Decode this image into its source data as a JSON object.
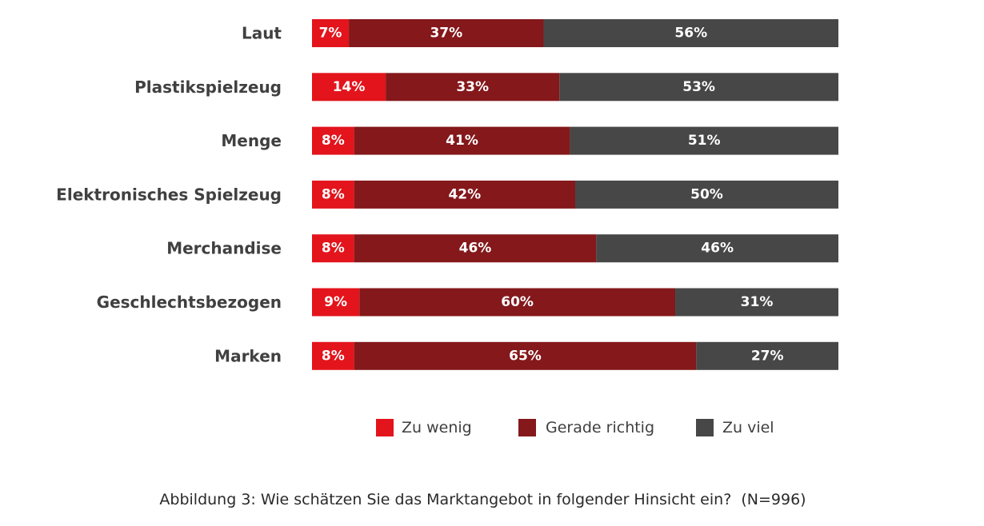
{
  "chart_data": {
    "type": "bar",
    "orientation": "horizontal",
    "stacked": true,
    "categories": [
      "Laut",
      "Plastikspielzeug",
      "Menge",
      "Elektronisches Spielzeug",
      "Merchandise",
      "Geschlechtsbezogen",
      "Marken"
    ],
    "series": [
      {
        "name": "Zu wenig",
        "color": "#e3141c",
        "values": [
          7,
          14,
          8,
          8,
          8,
          9,
          8
        ]
      },
      {
        "name": "Gerade richtig",
        "color": "#84181b",
        "values": [
          37,
          33,
          41,
          42,
          46,
          60,
          65
        ]
      },
      {
        "name": "Zu viel",
        "color": "#474747",
        "values": [
          56,
          53,
          51,
          50,
          46,
          31,
          27
        ]
      }
    ],
    "value_suffix": "%",
    "xlim": [
      0,
      100
    ],
    "title": "",
    "xlabel": "",
    "ylabel": "",
    "grid": false,
    "legend_position": "bottom"
  },
  "caption": "Abbildung 3: Wie schätzen Sie das Marktangebot in folgender Hinsicht ein?  (N=996)"
}
